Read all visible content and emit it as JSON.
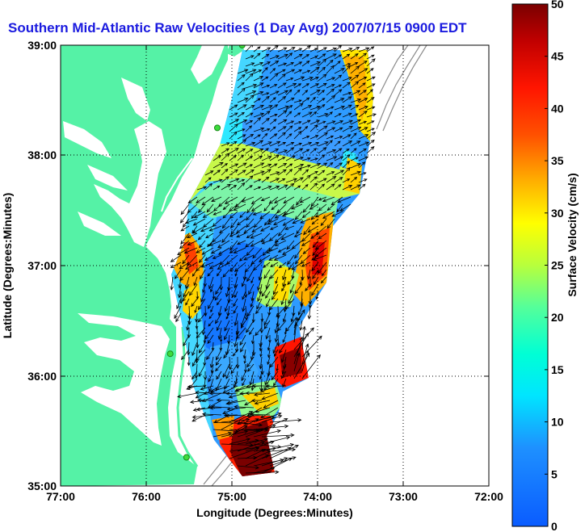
{
  "title": "Southern Mid-Atlantic Raw Velocities (1 Day Avg) 2007/07/15 0900 EDT",
  "xlabel": "Longitude (Degrees:Minutes)",
  "ylabel": "Latitude (Degrees:Minutes)",
  "x_ticks": [
    "77:00",
    "76:00",
    "75:00",
    "74:00",
    "73:00",
    "72:00"
  ],
  "y_ticks": [
    "39:00",
    "38:00",
    "37:00",
    "36:00",
    "35:00"
  ],
  "colorbar": {
    "label": "Surface Velocity (cm/s)",
    "ticks": [
      "0",
      "5",
      "10",
      "15",
      "20",
      "25",
      "30",
      "35",
      "40",
      "45",
      "50"
    ],
    "min": 0,
    "max": 50
  },
  "colors": {
    "land": "#55f2a6",
    "title": "#1a1adf",
    "vector": "#000000",
    "station": "#3ddc3d",
    "bathymetry": "#8a8a8a"
  },
  "map": {
    "lon_range": [
      -77,
      -72
    ],
    "lat_range": [
      35,
      39
    ],
    "grid": true,
    "stations": [
      {
        "lon": -74.88,
        "lat": 39.0
      },
      {
        "lon": -75.17,
        "lat": 38.25
      },
      {
        "lon": -75.72,
        "lat": 36.2
      },
      {
        "lon": -75.53,
        "lat": 35.26
      }
    ]
  }
}
